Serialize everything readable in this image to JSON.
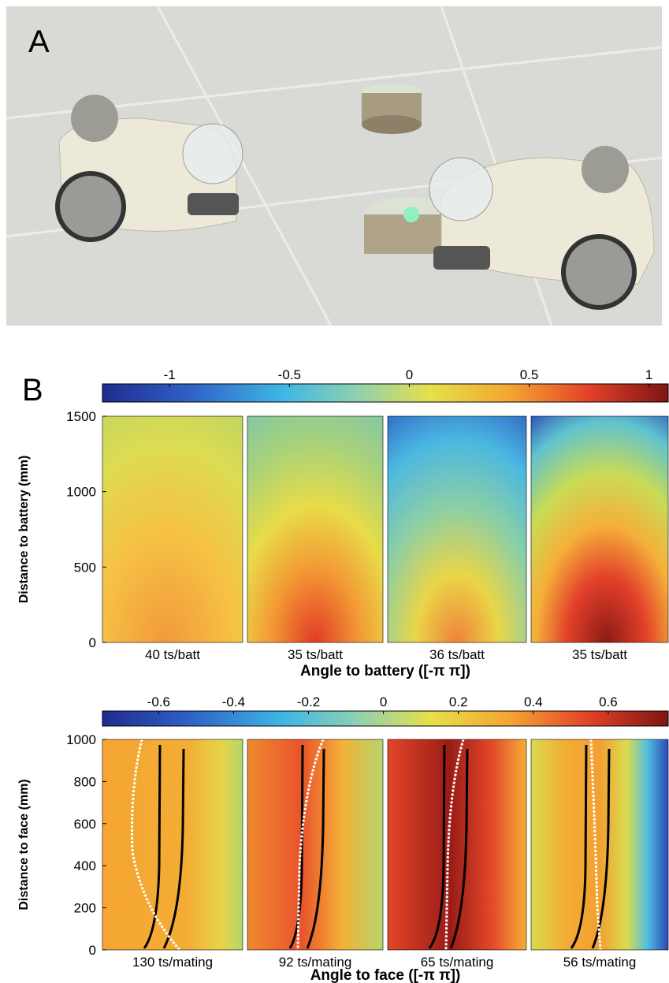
{
  "panel_labels": [
    "A",
    "B"
  ],
  "chart_data": [
    {
      "type": "heatmap",
      "ylabel": "Distance to battery (mm)",
      "xlabel": "Angle to battery ([-π π])",
      "ylim": [
        0,
        1500
      ],
      "yticks": [
        0,
        500,
        1000,
        1500
      ],
      "colorbar": {
        "lim": [
          -1.28,
          1.08
        ],
        "ticks": [
          -1,
          -0.5,
          0,
          0.5,
          1
        ]
      },
      "panels": [
        "40 ts/batt",
        "35 ts/batt",
        "36 ts/batt",
        "35 ts/batt"
      ]
    },
    {
      "type": "heatmap",
      "ylabel": "Distance to face (mm)",
      "xlabel": "Angle to face ([-π π])",
      "ylim": [
        0,
        1000
      ],
      "yticks": [
        0,
        200,
        400,
        600,
        800,
        1000
      ],
      "colorbar": {
        "lim": [
          -0.75,
          0.76
        ],
        "ticks": [
          -0.6,
          -0.4,
          -0.2,
          0,
          0.2,
          0.4,
          0.6
        ]
      },
      "panels": [
        "130 ts/mating",
        "92 ts/mating",
        "65 ts/mating",
        "56 ts/mating"
      ]
    }
  ]
}
